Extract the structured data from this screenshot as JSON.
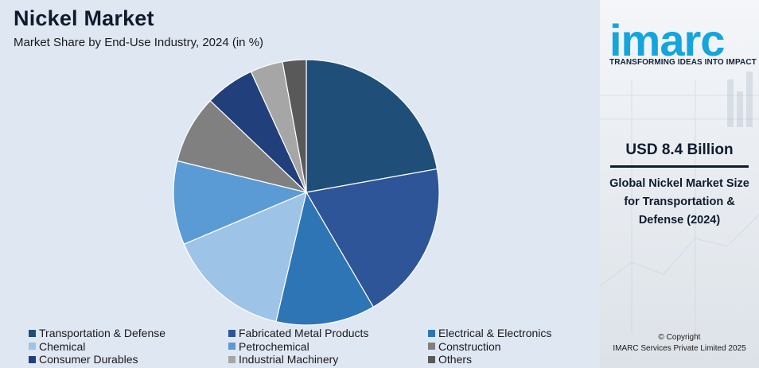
{
  "header": {
    "title": "Nickel Market",
    "subtitle": "Market Share by End-Use Industry, 2024 (in %)"
  },
  "chart_data": {
    "type": "pie",
    "title": "Nickel Market",
    "subtitle": "Market Share by End-Use Industry, 2024 (in %)",
    "categories": [
      "Transportation & Defense",
      "Fabricated Metal Products",
      "Electrical & Electronics",
      "Chemical",
      "Petrochemical",
      "Construction",
      "Consumer Durables",
      "Industrial Machinery",
      "Others"
    ],
    "values": [
      22.4,
      19.6,
      12.2,
      15.1,
      10.3,
      8.4,
      6.1,
      4.0,
      2.9
    ],
    "colors": [
      "#1f4e79",
      "#2e5597",
      "#2e75b6",
      "#9dc3e6",
      "#5b9bd5",
      "#808080",
      "#213f7a",
      "#a6a6a6",
      "#595959"
    ],
    "start_angle_deg": 0,
    "direction": "clockwise",
    "legend_position": "bottom"
  },
  "panel": {
    "logo": "imarc",
    "tagline": "TRANSFORMING IDEAS INTO IMPACT",
    "value": "USD 8.4 Billion",
    "description": "Global Nickel Market Size for Transportation & Defense (2024)",
    "copyright_line1": "© Copyright",
    "copyright_line2": "IMARC Services Private Limited 2025"
  }
}
